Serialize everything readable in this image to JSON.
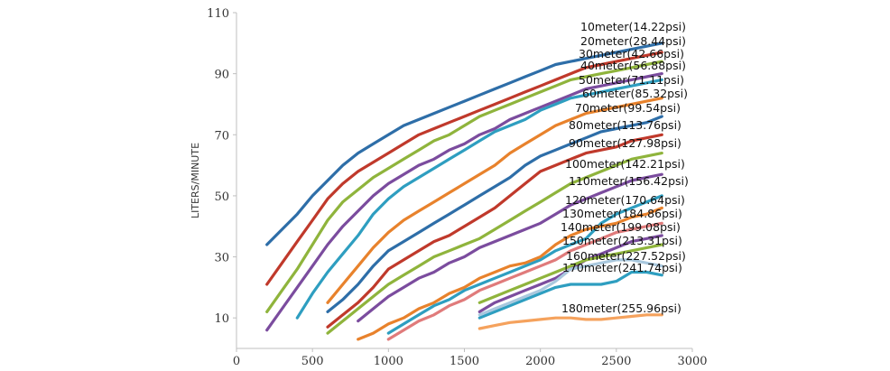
{
  "chart_data": {
    "type": "line",
    "title": "",
    "xlabel": "",
    "ylabel": "LITERS/MINUTE",
    "xlim": [
      0,
      3000
    ],
    "ylim": [
      0,
      110
    ],
    "xticks": [
      0,
      500,
      1000,
      1500,
      2000,
      2500,
      3000
    ],
    "yticks": [
      10,
      30,
      50,
      70,
      90,
      110
    ],
    "grid": false,
    "legend": "inline-right",
    "series": [
      {
        "name": "10meter(14.22psi)",
        "color": "#2e6ea8",
        "x": [
          200,
          300,
          400,
          500,
          600,
          700,
          800,
          900,
          1000,
          1100,
          1200,
          1300,
          1400,
          1500,
          1600,
          1700,
          1800,
          1900,
          2000,
          2100,
          2200,
          2300,
          2400,
          2500,
          2600,
          2700,
          2800
        ],
        "y": [
          34,
          39,
          44,
          50,
          55,
          60,
          64,
          67,
          70,
          73,
          75,
          77,
          79,
          81,
          83,
          85,
          87,
          89,
          91,
          93,
          94,
          95,
          96,
          97,
          98,
          99,
          100
        ]
      },
      {
        "name": "20meter(28.44psi)",
        "color": "#c0392b",
        "x": [
          200,
          300,
          400,
          500,
          600,
          700,
          800,
          900,
          1000,
          1100,
          1200,
          1300,
          1400,
          1500,
          1600,
          1700,
          1800,
          1900,
          2000,
          2100,
          2200,
          2300,
          2400,
          2500,
          2600,
          2700,
          2800
        ],
        "y": [
          21,
          28,
          35,
          42,
          49,
          54,
          58,
          61,
          64,
          67,
          70,
          72,
          74,
          76,
          78,
          80,
          82,
          84,
          86,
          88,
          90,
          92,
          93,
          94,
          95,
          96,
          97
        ]
      },
      {
        "name": "30meter(42.66psi)",
        "color": "#8fb43c",
        "x": [
          200,
          300,
          400,
          500,
          600,
          700,
          800,
          900,
          1000,
          1100,
          1200,
          1300,
          1400,
          1500,
          1600,
          1700,
          1800,
          1900,
          2000,
          2100,
          2200,
          2300,
          2400,
          2500,
          2600,
          2700,
          2800
        ],
        "y": [
          12,
          19,
          26,
          34,
          42,
          48,
          52,
          56,
          59,
          62,
          65,
          68,
          70,
          73,
          76,
          78,
          80,
          82,
          84,
          86,
          88,
          89,
          90,
          91,
          92,
          93,
          94
        ]
      },
      {
        "name": "40meter(56.88psi)",
        "color": "#7b4c9e",
        "x": [
          200,
          300,
          400,
          500,
          600,
          700,
          800,
          900,
          1000,
          1100,
          1200,
          1300,
          1400,
          1500,
          1600,
          1700,
          1800,
          1900,
          2000,
          2100,
          2200,
          2300,
          2400,
          2500,
          2600,
          2700,
          2800
        ],
        "y": [
          6,
          13,
          20,
          27,
          34,
          40,
          45,
          50,
          54,
          57,
          60,
          62,
          65,
          67,
          70,
          72,
          75,
          77,
          79,
          81,
          83,
          85,
          86,
          87,
          88,
          89,
          90
        ]
      },
      {
        "name": "50meter(71.11psi)",
        "color": "#2e9ec0",
        "x": [
          400,
          500,
          600,
          700,
          800,
          900,
          1000,
          1100,
          1200,
          1300,
          1400,
          1500,
          1600,
          1700,
          1800,
          1900,
          2000,
          2100,
          2200,
          2300,
          2400,
          2500,
          2600,
          2700,
          2800
        ],
        "y": [
          10,
          18,
          25,
          31,
          37,
          44,
          49,
          53,
          56,
          59,
          62,
          65,
          68,
          71,
          73,
          75,
          78,
          80,
          82,
          83,
          84,
          85,
          86,
          87,
          88
        ]
      },
      {
        "name": "60meter(85.32psi)",
        "color": "#e8822c",
        "x": [
          600,
          700,
          800,
          900,
          1000,
          1100,
          1200,
          1300,
          1400,
          1500,
          1600,
          1700,
          1800,
          1900,
          2000,
          2100,
          2200,
          2300,
          2400,
          2500,
          2600,
          2700,
          2800
        ],
        "y": [
          15,
          21,
          27,
          33,
          38,
          42,
          45,
          48,
          51,
          54,
          57,
          60,
          64,
          67,
          70,
          73,
          75,
          77,
          78,
          79,
          80,
          81,
          82
        ]
      },
      {
        "name": "70meter(99.54psi)",
        "color": "#2e6ea8",
        "x": [
          600,
          700,
          800,
          900,
          1000,
          1100,
          1200,
          1300,
          1400,
          1500,
          1600,
          1700,
          1800,
          1900,
          2000,
          2100,
          2200,
          2300,
          2400,
          2500,
          2600,
          2700,
          2800
        ],
        "y": [
          12,
          16,
          21,
          27,
          32,
          35,
          38,
          41,
          44,
          47,
          50,
          53,
          56,
          60,
          63,
          65,
          67,
          69,
          71,
          72,
          73,
          74,
          76
        ]
      },
      {
        "name": "80meter(113.76psi)",
        "color": "#c0392b",
        "x": [
          600,
          700,
          800,
          900,
          1000,
          1100,
          1200,
          1300,
          1400,
          1500,
          1600,
          1700,
          1800,
          1900,
          2000,
          2100,
          2200,
          2300,
          2400,
          2500,
          2600,
          2700,
          2800
        ],
        "y": [
          7,
          11,
          15,
          20,
          26,
          29,
          32,
          35,
          37,
          40,
          43,
          46,
          50,
          54,
          58,
          60,
          62,
          64,
          65,
          66,
          68,
          69,
          70
        ]
      },
      {
        "name": "90meter(127.98psi)",
        "color": "#8fb43c",
        "x": [
          600,
          700,
          800,
          900,
          1000,
          1100,
          1200,
          1300,
          1400,
          1500,
          1600,
          1700,
          1800,
          1900,
          2000,
          2100,
          2200,
          2300,
          2400,
          2500,
          2600,
          2700,
          2800
        ],
        "y": [
          5,
          9,
          13,
          17,
          21,
          24,
          27,
          30,
          32,
          34,
          36,
          39,
          42,
          45,
          48,
          51,
          54,
          56,
          58,
          60,
          62,
          63,
          64
        ]
      },
      {
        "name": "100meter(142.21psi)",
        "color": "#7b4c9e",
        "x": [
          800,
          900,
          1000,
          1100,
          1200,
          1300,
          1400,
          1500,
          1600,
          1700,
          1800,
          1900,
          2000,
          2100,
          2200,
          2300,
          2400,
          2500,
          2600,
          2700,
          2800
        ],
        "y": [
          9,
          13,
          17,
          20,
          23,
          25,
          28,
          30,
          33,
          35,
          37,
          39,
          41,
          44,
          47,
          49,
          51,
          53,
          55,
          56,
          57
        ]
      },
      {
        "name": "110meter(156.42psi)",
        "color": "#2e9ec0",
        "x": [
          1000,
          1100,
          1200,
          1300,
          1400,
          1500,
          1600,
          1700,
          1800,
          1900,
          2000,
          2100,
          2200,
          2300,
          2400,
          2500,
          2600,
          2700,
          2800
        ],
        "y": [
          5,
          8,
          11,
          14,
          16,
          19,
          21,
          23,
          25,
          27,
          29,
          32,
          34,
          36,
          41,
          44,
          46,
          48,
          50
        ]
      },
      {
        "name": "120meter(170.64psi)",
        "color": "#e8822c",
        "x": [
          800,
          900,
          1000,
          1100,
          1200,
          1300,
          1400,
          1500,
          1600,
          1700,
          1800,
          1900,
          2000,
          2100,
          2200,
          2300,
          2400,
          2500,
          2600,
          2700,
          2800
        ],
        "y": [
          3,
          5,
          8,
          10,
          13,
          15,
          18,
          20,
          23,
          25,
          27,
          28,
          30,
          34,
          37,
          39,
          40,
          41,
          43,
          44,
          46
        ]
      },
      {
        "name": "130meter(184.86psi)",
        "color": "#e07b7b",
        "x": [
          1000,
          1100,
          1200,
          1300,
          1400,
          1500,
          1600,
          1700,
          1800,
          1900,
          2000,
          2100,
          2200,
          2300,
          2400,
          2500,
          2600,
          2700,
          2800
        ],
        "y": [
          3,
          6,
          9,
          11,
          14,
          16,
          19,
          21,
          23,
          25,
          27,
          29,
          32,
          34,
          36,
          38,
          39,
          40,
          41
        ]
      },
      {
        "name": "140meter(199.08psi)",
        "color": "#7b4c9e",
        "x": [
          1600,
          1700,
          1800,
          1900,
          2000,
          2100,
          2200,
          2300,
          2400,
          2500,
          2600,
          2700,
          2800
        ],
        "y": [
          12,
          15,
          17,
          19,
          21,
          23,
          26,
          29,
          31,
          33,
          35,
          36,
          37
        ]
      },
      {
        "name": "150meter(213.31psi)",
        "color": "#8fb43c",
        "x": [
          1600,
          1700,
          1800,
          1900,
          2000,
          2100,
          2200,
          2300,
          2400,
          2500,
          2600,
          2700,
          2800
        ],
        "y": [
          15,
          17,
          19,
          21,
          23,
          25,
          27,
          29,
          30,
          31,
          32,
          33,
          34
        ]
      },
      {
        "name": "160meter(227.52psi)",
        "color": "#2e9ec0",
        "x": [
          1600,
          1700,
          1800,
          1900,
          2000,
          2100,
          2200,
          2300,
          2400,
          2500,
          2600,
          2700,
          2800
        ],
        "y": [
          10,
          12,
          14,
          16,
          18,
          20,
          21,
          21,
          21,
          22,
          25,
          25,
          24
        ]
      },
      {
        "name": "170meter(241.74psi)",
        "color": "#a9c8de",
        "x": [
          1600,
          1700,
          1800,
          1900,
          2000,
          2100,
          2200,
          2300,
          2400,
          2500,
          2600,
          2700,
          2800
        ],
        "y": [
          11,
          13,
          15,
          17,
          19,
          22,
          26,
          27,
          28,
          29,
          29,
          28,
          27
        ]
      },
      {
        "name": "180meter(255.96psi)",
        "color": "#f5a25d",
        "x": [
          1600,
          1700,
          1800,
          1900,
          2000,
          2100,
          2200,
          2300,
          2400,
          2500,
          2600,
          2700,
          2800
        ],
        "y": [
          6.5,
          7.5,
          8.5,
          9,
          9.5,
          10,
          10,
          9.5,
          9.5,
          10,
          10.5,
          11,
          11
        ]
      }
    ]
  }
}
